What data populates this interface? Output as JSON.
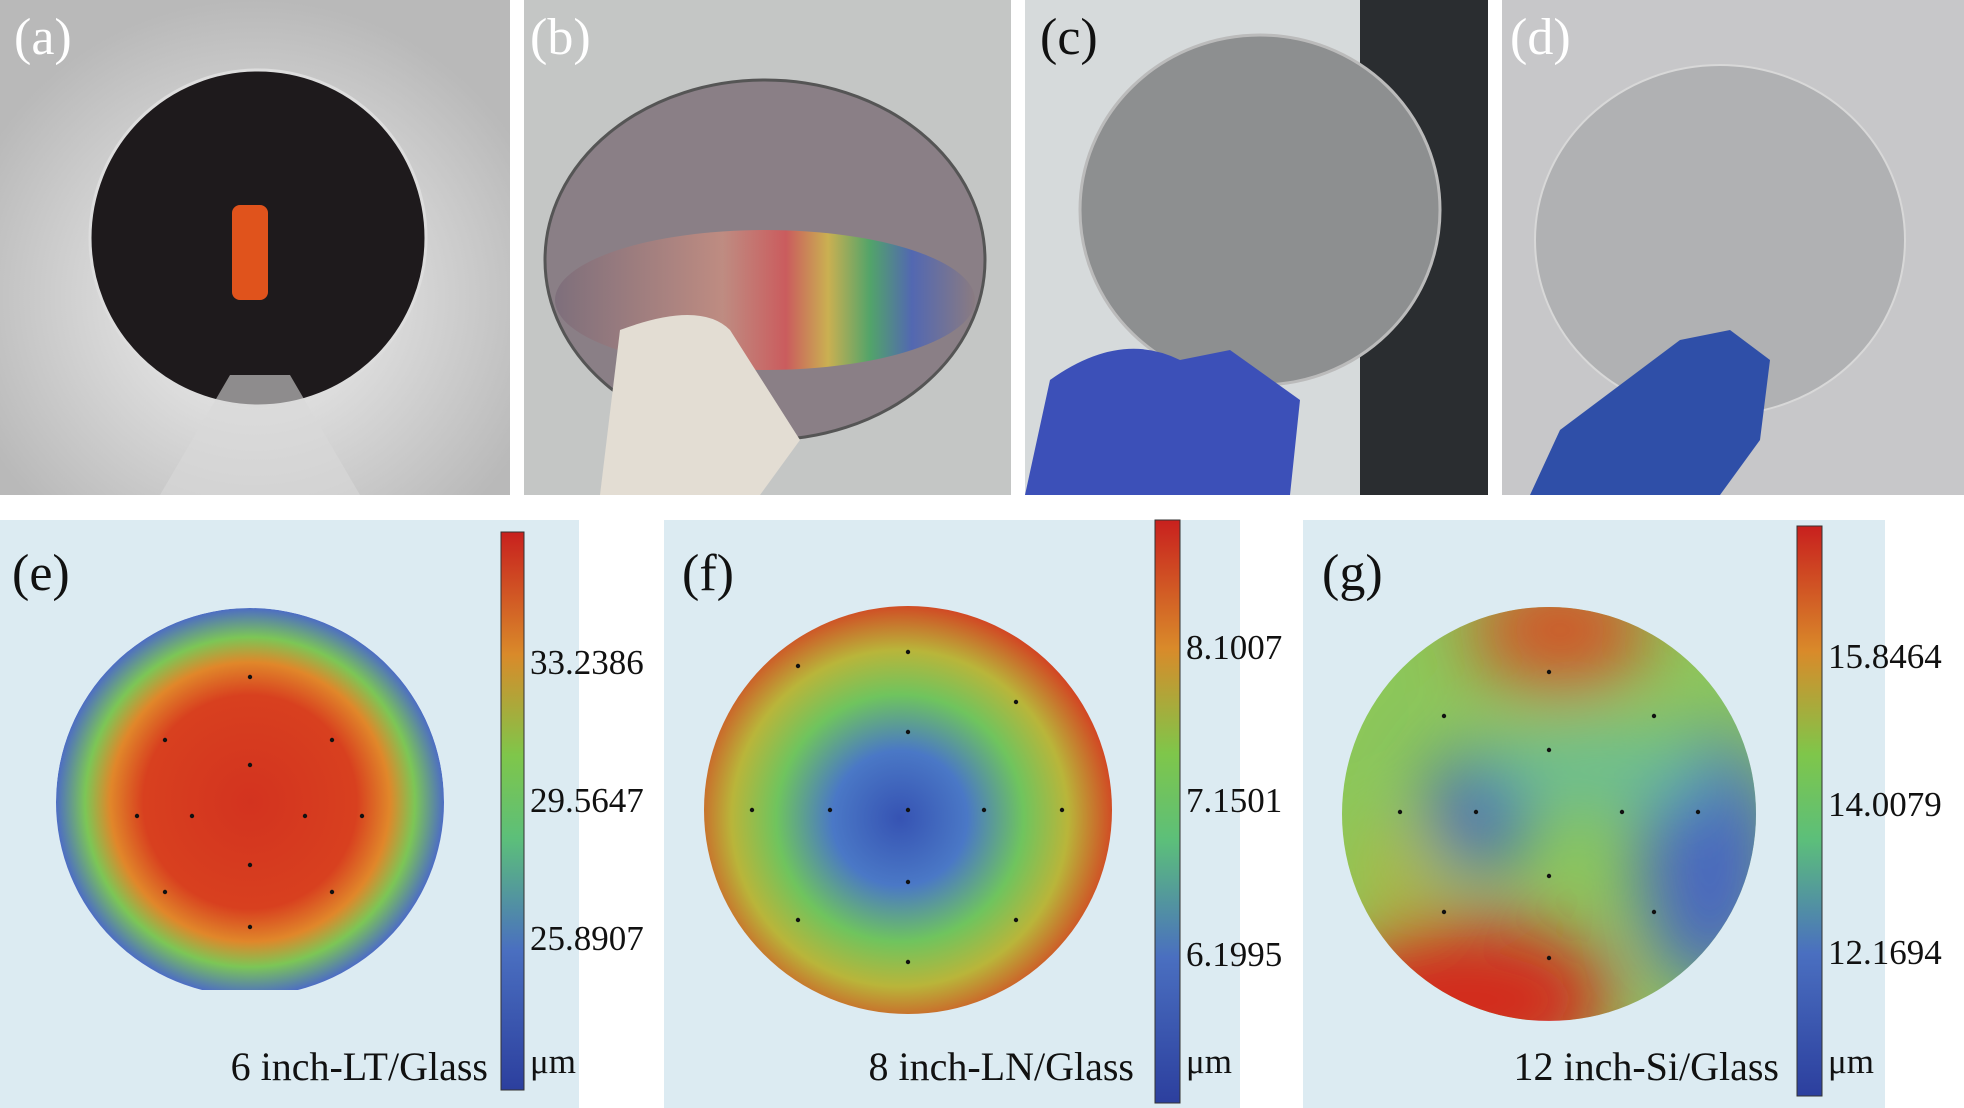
{
  "photos": [
    {
      "label": "(a)"
    },
    {
      "label": "(b)"
    },
    {
      "label": "(c)"
    },
    {
      "label": "(d)"
    }
  ],
  "maps": [
    {
      "label": "(e)",
      "ticks": [
        33.2386,
        29.5647,
        25.8907
      ],
      "unit": "μm",
      "caption": "6 inch-LT/Glass"
    },
    {
      "label": "(f)",
      "ticks": [
        8.1007,
        7.1501,
        6.1995
      ],
      "unit": "μm",
      "caption": "8 inch-LN/Glass"
    },
    {
      "label": "(g)",
      "ticks": [
        15.8464,
        14.0079,
        12.1694
      ],
      "unit": "μm",
      "caption": "12 inch-Si/Glass"
    }
  ]
}
